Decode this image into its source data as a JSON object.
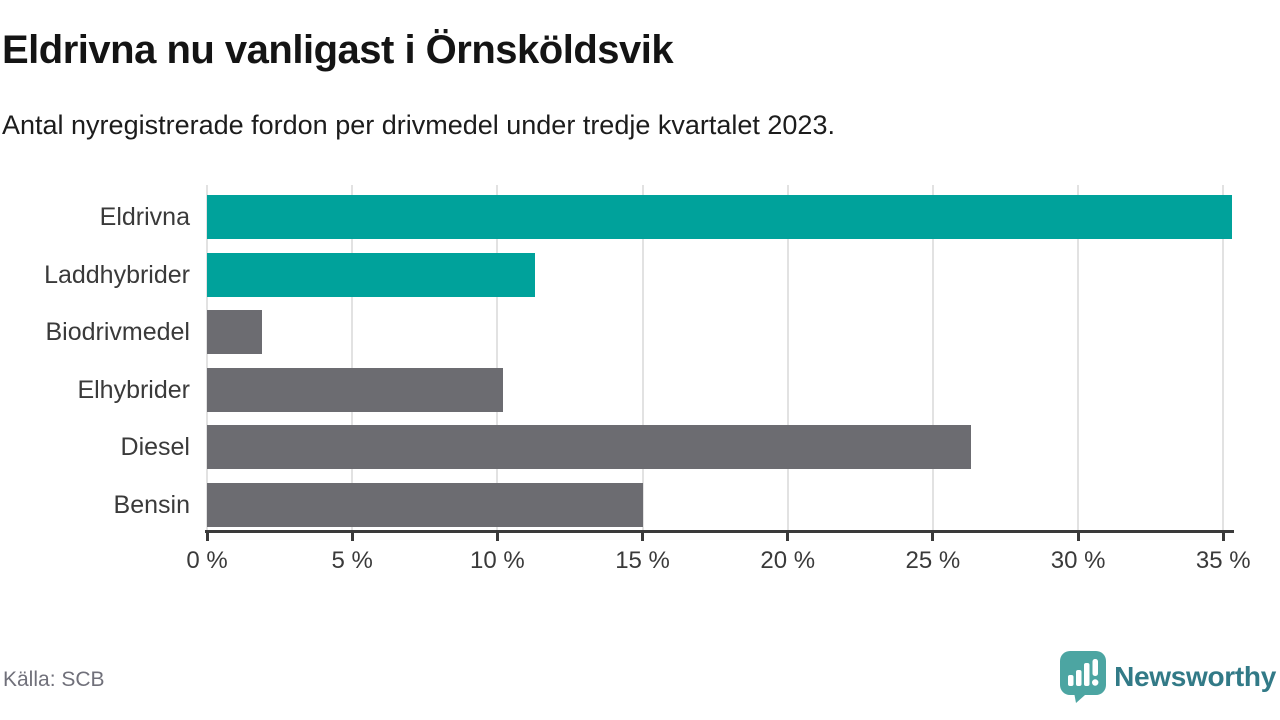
{
  "header": {
    "title_note": "bound from chart_data.title and chart_data.subtitle"
  },
  "chart_data": {
    "type": "bar",
    "orientation": "horizontal",
    "title": "Eldrivna nu vanligast i Örnsköldsvik",
    "subtitle": "Antal nyregistrerade fordon per drivmedel under tredje kvartalet 2023.",
    "categories": [
      "Eldrivna",
      "Laddhybrider",
      "Biodrivmedel",
      "Elhybrider",
      "Diesel",
      "Bensin"
    ],
    "values": [
      35.3,
      11.3,
      1.9,
      10.2,
      26.3,
      15.0
    ],
    "unit": "%",
    "xlim": [
      0,
      35.3
    ],
    "xticks": [
      0,
      5,
      10,
      15,
      20,
      25,
      30,
      35
    ],
    "xtick_labels": [
      "0 %",
      "5 %",
      "10 %",
      "15 %",
      "20 %",
      "25 %",
      "30 %",
      "35 %"
    ],
    "bar_colors": [
      "#00a29b",
      "#00a29b",
      "#6c6c71",
      "#6c6c71",
      "#6c6c71",
      "#6c6c71"
    ],
    "highlight_color": "#00a29b",
    "default_color": "#6c6c71",
    "gridline_color": "#e2e2e2",
    "axis_color": "#3a3a3a",
    "grid": "vertical-only",
    "legend": "none"
  },
  "footer": {
    "source": "Källa: SCB",
    "brand": "Newsworthy",
    "brand_color": "#327a87",
    "logo_color": "#4ca5a2"
  }
}
